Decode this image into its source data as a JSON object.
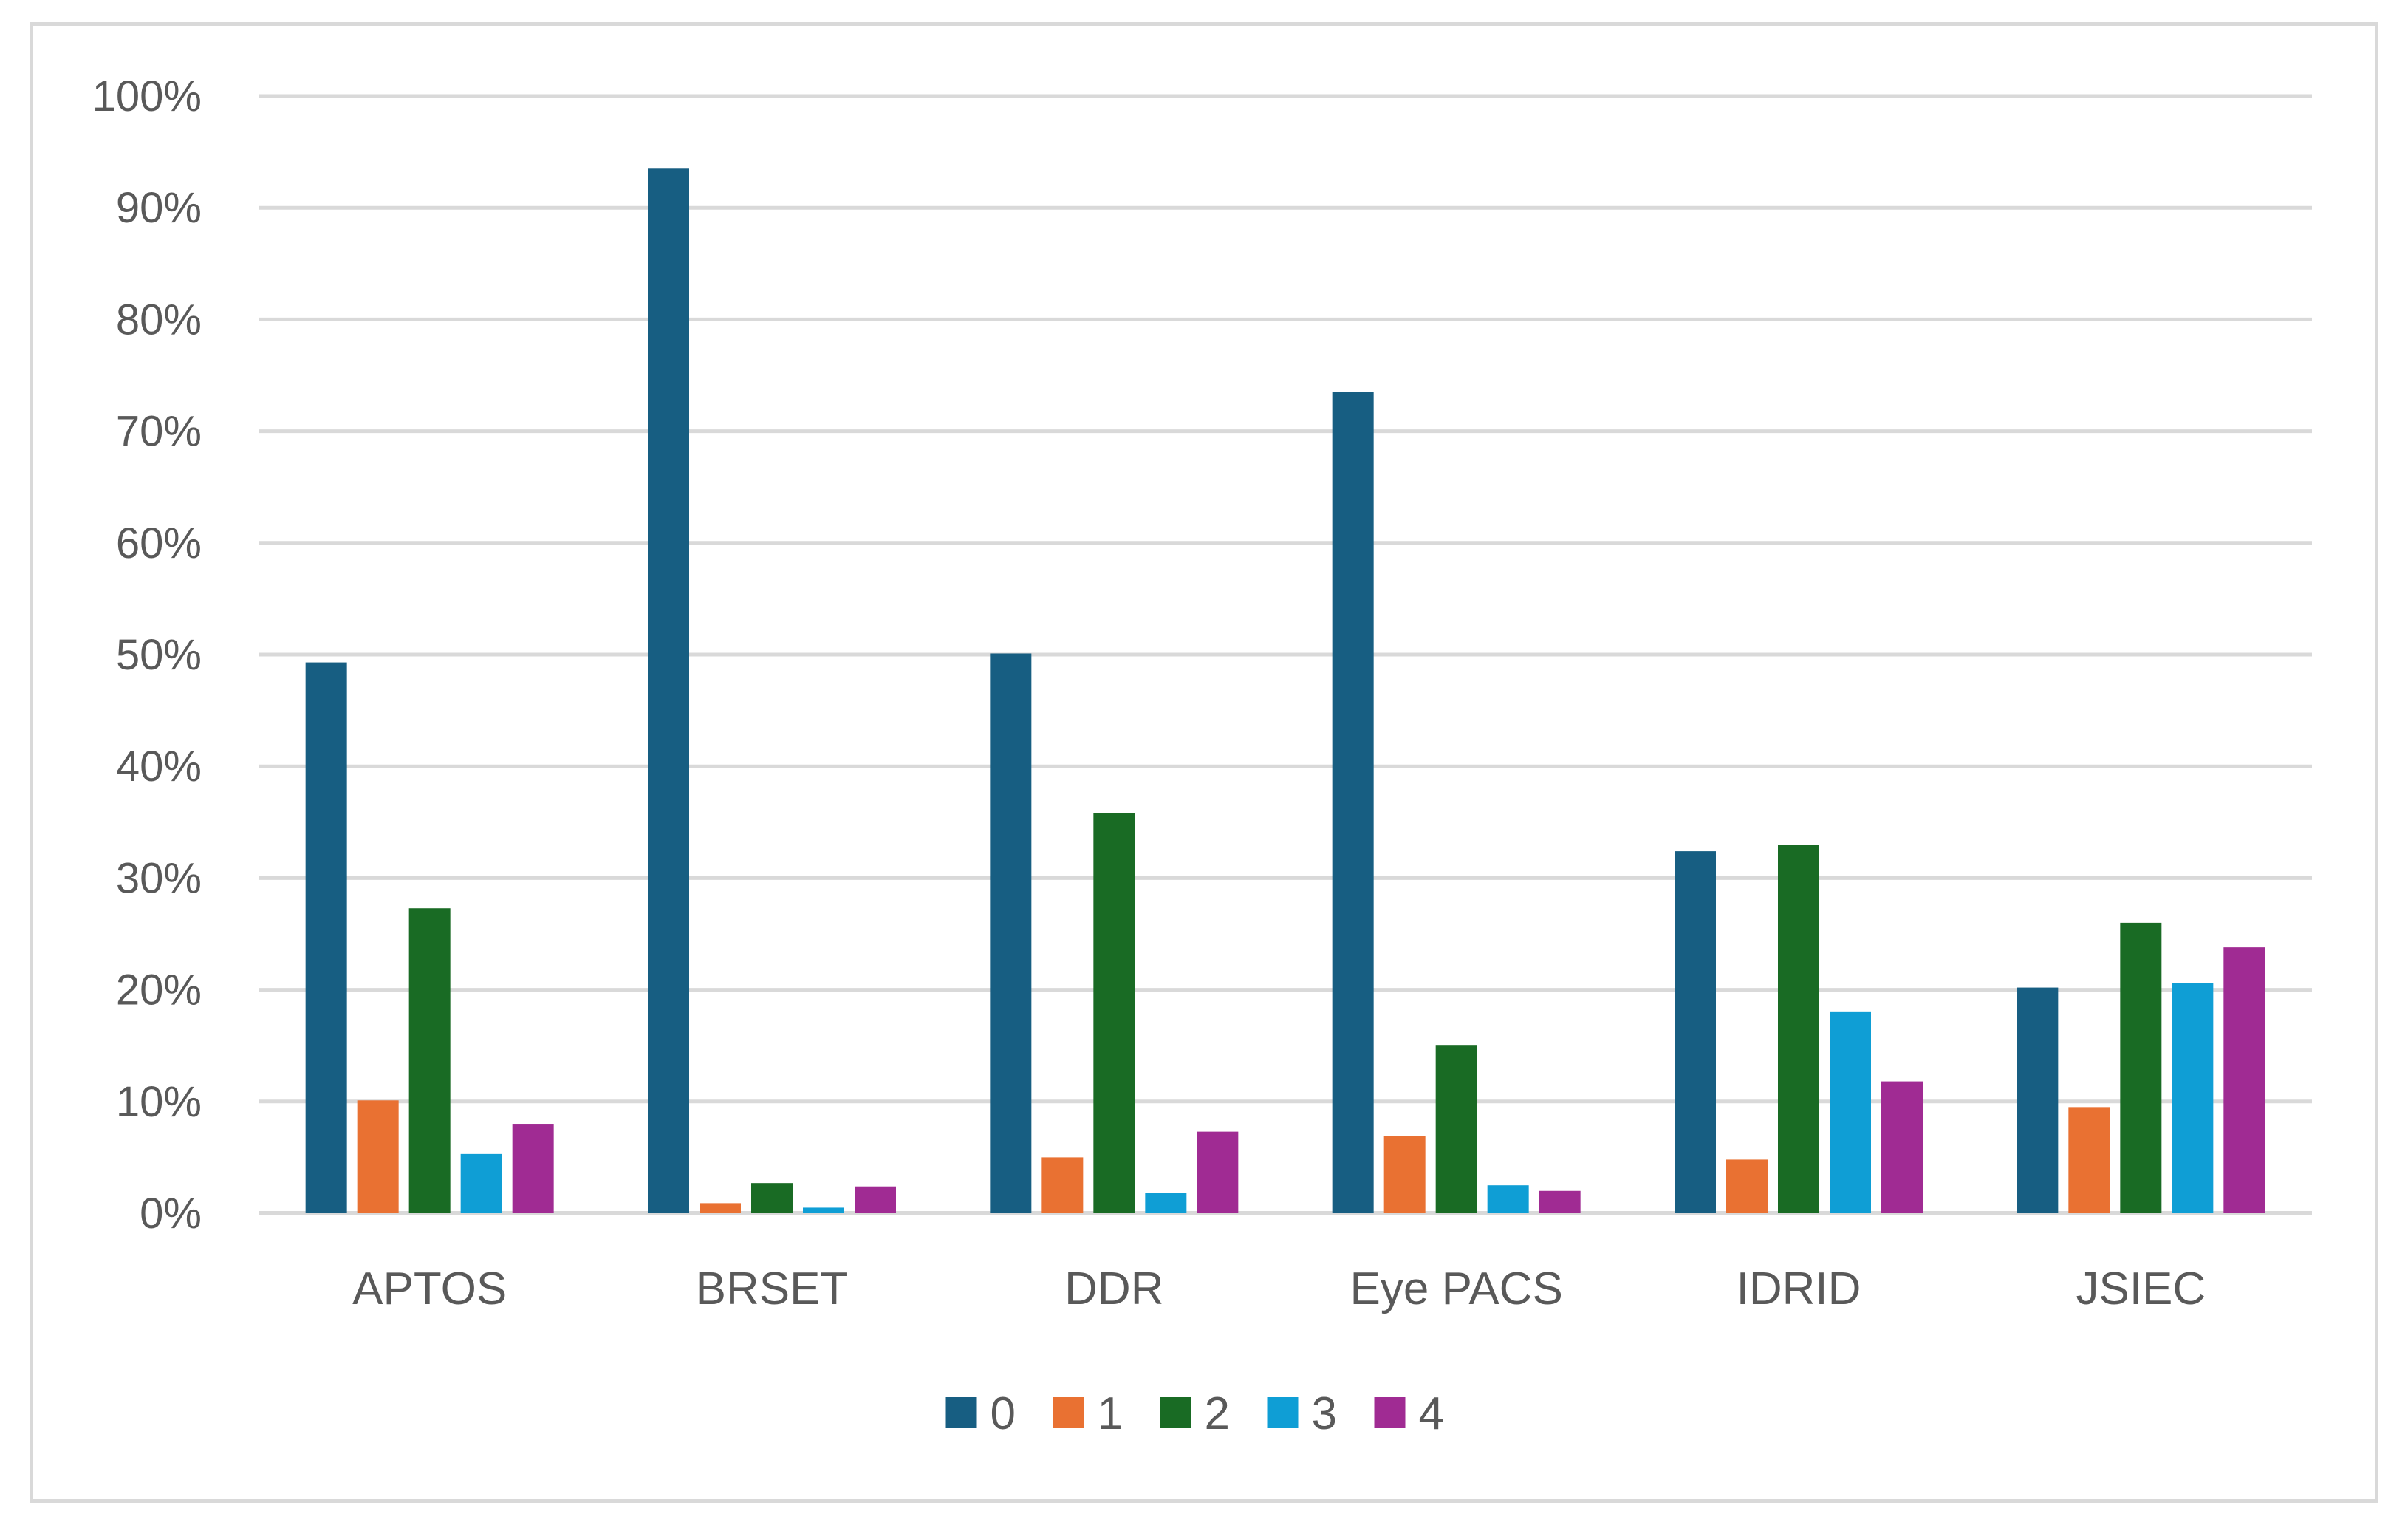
{
  "chart_data": {
    "type": "bar",
    "title": "",
    "xlabel": "",
    "ylabel": "",
    "categories": [
      "APTOS",
      "BRSET",
      "DDR",
      "Eye PACS",
      "IDRID",
      "JSIEC"
    ],
    "series": [
      {
        "name": "0",
        "color": "#175e82",
        "values": [
          49.3,
          93.5,
          50.1,
          73.5,
          32.4,
          20.2
        ]
      },
      {
        "name": "1",
        "color": "#e97132",
        "values": [
          10.1,
          0.9,
          5.0,
          6.9,
          4.8,
          9.5
        ]
      },
      {
        "name": "2",
        "color": "#196b24",
        "values": [
          27.3,
          2.7,
          35.8,
          15.0,
          33.0,
          26.0
        ]
      },
      {
        "name": "3",
        "color": "#0f9ed5",
        "values": [
          5.3,
          0.5,
          1.8,
          2.5,
          18.0,
          20.6
        ]
      },
      {
        "name": "4",
        "color": "#a02b93",
        "values": [
          8.0,
          2.4,
          7.3,
          2.0,
          11.8,
          23.8
        ]
      }
    ],
    "ylim": [
      0,
      100
    ],
    "yticks": [
      0,
      10,
      20,
      30,
      40,
      50,
      60,
      70,
      80,
      90,
      100
    ],
    "ytick_labels": [
      "0%",
      "10%",
      "20%",
      "30%",
      "40%",
      "50%",
      "60%",
      "70%",
      "80%",
      "90%",
      "100%"
    ],
    "grid": true,
    "legend_position": "bottom",
    "colors": {
      "gridline": "#d9d9d9",
      "axis_text": "#595959",
      "border": "#d9d9d9"
    }
  }
}
